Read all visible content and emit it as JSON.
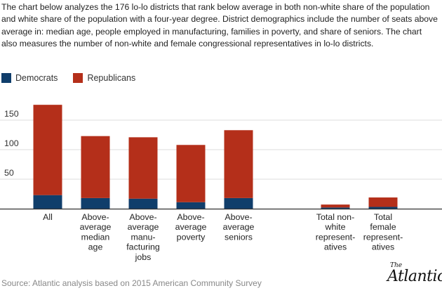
{
  "intro": "The chart below analyzes the 176 lo-lo districts that rank below average in both non-white share of the population and white share of the population with a four-year degree. District demographics include the number of seats above average in: median age, people employed in manufacturing, families in poverty, and share of seniors. The chart also measures the number of non-white and female congressional representatives in lo-lo districts.",
  "source": "Source: Atlantic analysis based on 2015 American Community Survey",
  "logo": {
    "the": "The",
    "name": "Atlantic"
  },
  "colors": {
    "democrats": "#103e6b",
    "republicans": "#b42f1a",
    "axis": "#333333",
    "grid": "#dddddd"
  },
  "chart_data": {
    "type": "bar",
    "stacked": true,
    "categories": [
      [
        "All"
      ],
      [
        "Above-",
        "average",
        "median",
        "age"
      ],
      [
        "Above-",
        "average",
        "manu-",
        "facturing",
        "jobs"
      ],
      [
        "Above-",
        "average",
        "poverty"
      ],
      [
        "Above-",
        "average",
        "seniors"
      ],
      [
        "Total non-",
        "white",
        "represent-",
        "atives"
      ],
      [
        "Total",
        "female",
        "represent-",
        "atives"
      ]
    ],
    "series": [
      {
        "name": "Democrats",
        "values": [
          23,
          18,
          17,
          11,
          18,
          2,
          3
        ]
      },
      {
        "name": "Republicans",
        "values": [
          153,
          105,
          104,
          97,
          115,
          5,
          16
        ]
      }
    ],
    "yticks": [
      50,
      100,
      150
    ],
    "ylim": [
      0,
      185
    ],
    "legend_position": "top-left",
    "grid": true
  }
}
